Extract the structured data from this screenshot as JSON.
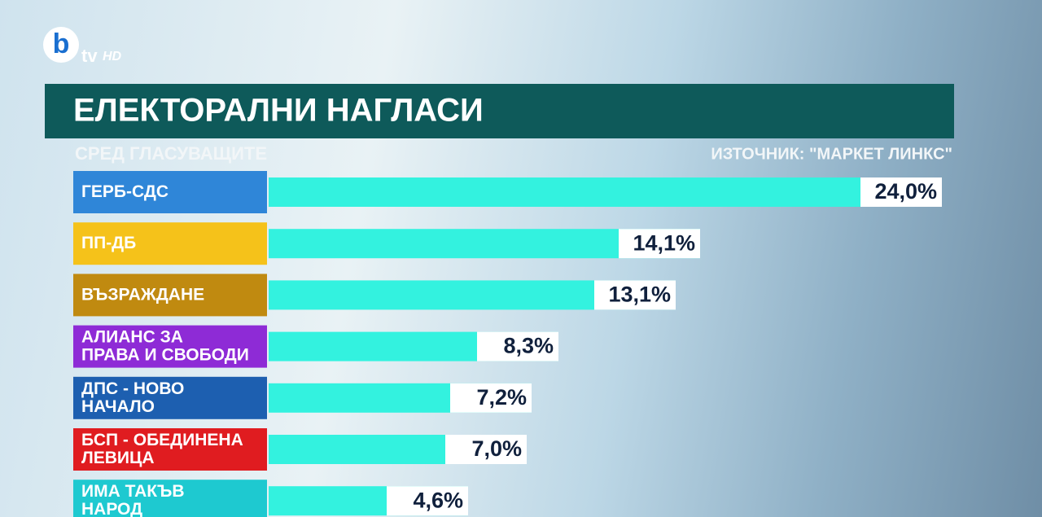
{
  "logo": {
    "brand": "b",
    "channel": "tv",
    "quality": "HD"
  },
  "chart_data": {
    "type": "hbar",
    "title": "ЕЛЕКТОРАЛНИ НАГЛАСИ",
    "subtitle": "СРЕД ГЛАСУВАЩИТЕ",
    "source": "ИЗТОЧНИК: \"МАРКЕТ ЛИНКС\"",
    "categories": [
      "ГЕРБ-СДС",
      "ПП-ДБ",
      "ВЪЗРАЖДАНЕ",
      "АЛИАНС ЗА\nПРАВА И СВОБОДИ",
      "ДПС - НОВО\nНАЧАЛО",
      "БСП - ОБЕДИНЕНА\nЛЕВИЦА",
      "ИМА ТАКЪВ\nНАРОД"
    ],
    "category_colors": [
      "#2f86d8",
      "#f5c21a",
      "#c08a10",
      "#8e2bd6",
      "#1d5fb0",
      "#e01c20",
      "#1ec9d0"
    ],
    "values": [
      24.0,
      14.1,
      13.1,
      8.3,
      7.2,
      7.0,
      4.6
    ],
    "value_labels": [
      "24,0%",
      "14,1%",
      "13,1%",
      "8,3%",
      "7,2%",
      "7,0%",
      "4,6%"
    ],
    "color": "#33f2df"
  }
}
